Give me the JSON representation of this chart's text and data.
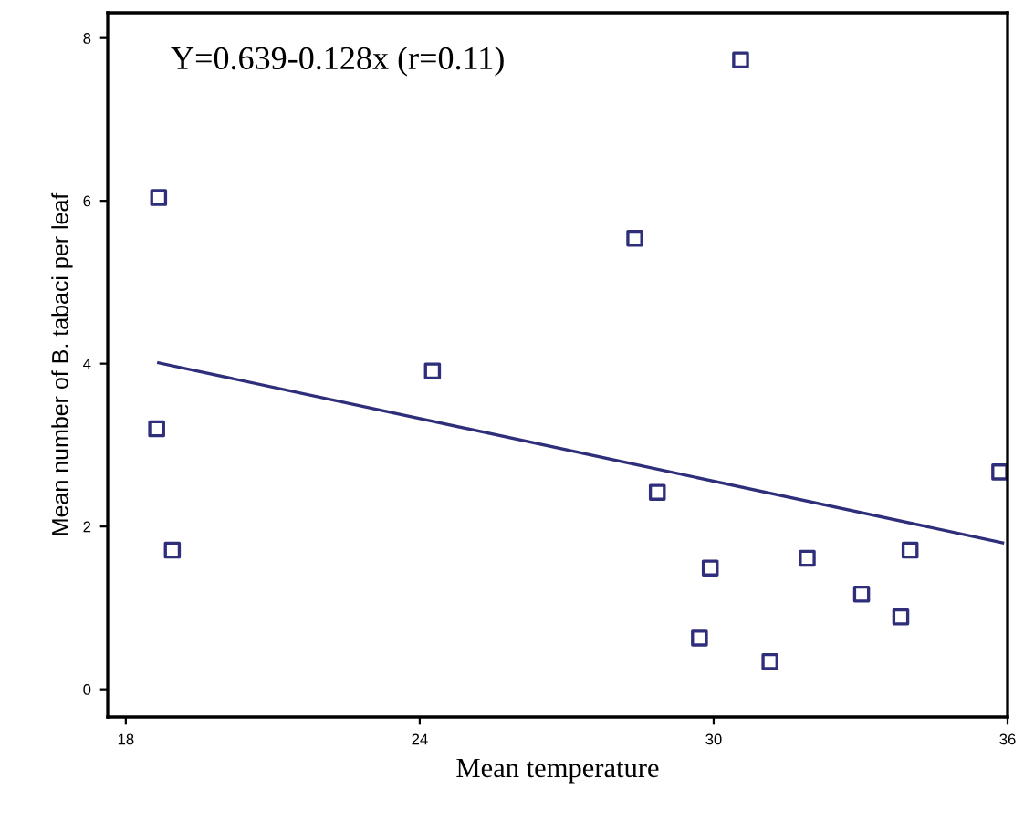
{
  "chart_data": {
    "type": "scatter",
    "xlabel": "Mean temperature",
    "ylabel": "Mean number of B. tabaci per leaf",
    "annotations": [
      "Y=0.639-0.128x (r=0.11)"
    ],
    "xlim": [
      17.63,
      36
    ],
    "ylim": [
      -0.34,
      8.31
    ],
    "xticks": [
      18,
      24,
      30,
      36
    ],
    "yticks": [
      0,
      2,
      4,
      6,
      8
    ],
    "marker": "square",
    "grid": false,
    "series": [
      {
        "color": "#2e2e7a",
        "x": [
          18.67,
          18.63,
          18.95,
          24.26,
          30.55,
          28.39,
          28.85,
          29.93,
          29.71,
          31.15,
          31.91,
          33.02,
          33.82,
          34.01,
          35.84
        ],
        "values": [
          6.04,
          3.2,
          1.71,
          3.91,
          7.73,
          5.54,
          2.42,
          1.49,
          0.63,
          0.34,
          1.61,
          1.17,
          0.89,
          1.71,
          2.67
        ]
      },
      {
        "type": "line",
        "color": "#2e2e7a",
        "marker": "none",
        "x": [
          18.67,
          35.9
        ],
        "values": [
          4.01,
          1.8
        ]
      }
    ]
  }
}
